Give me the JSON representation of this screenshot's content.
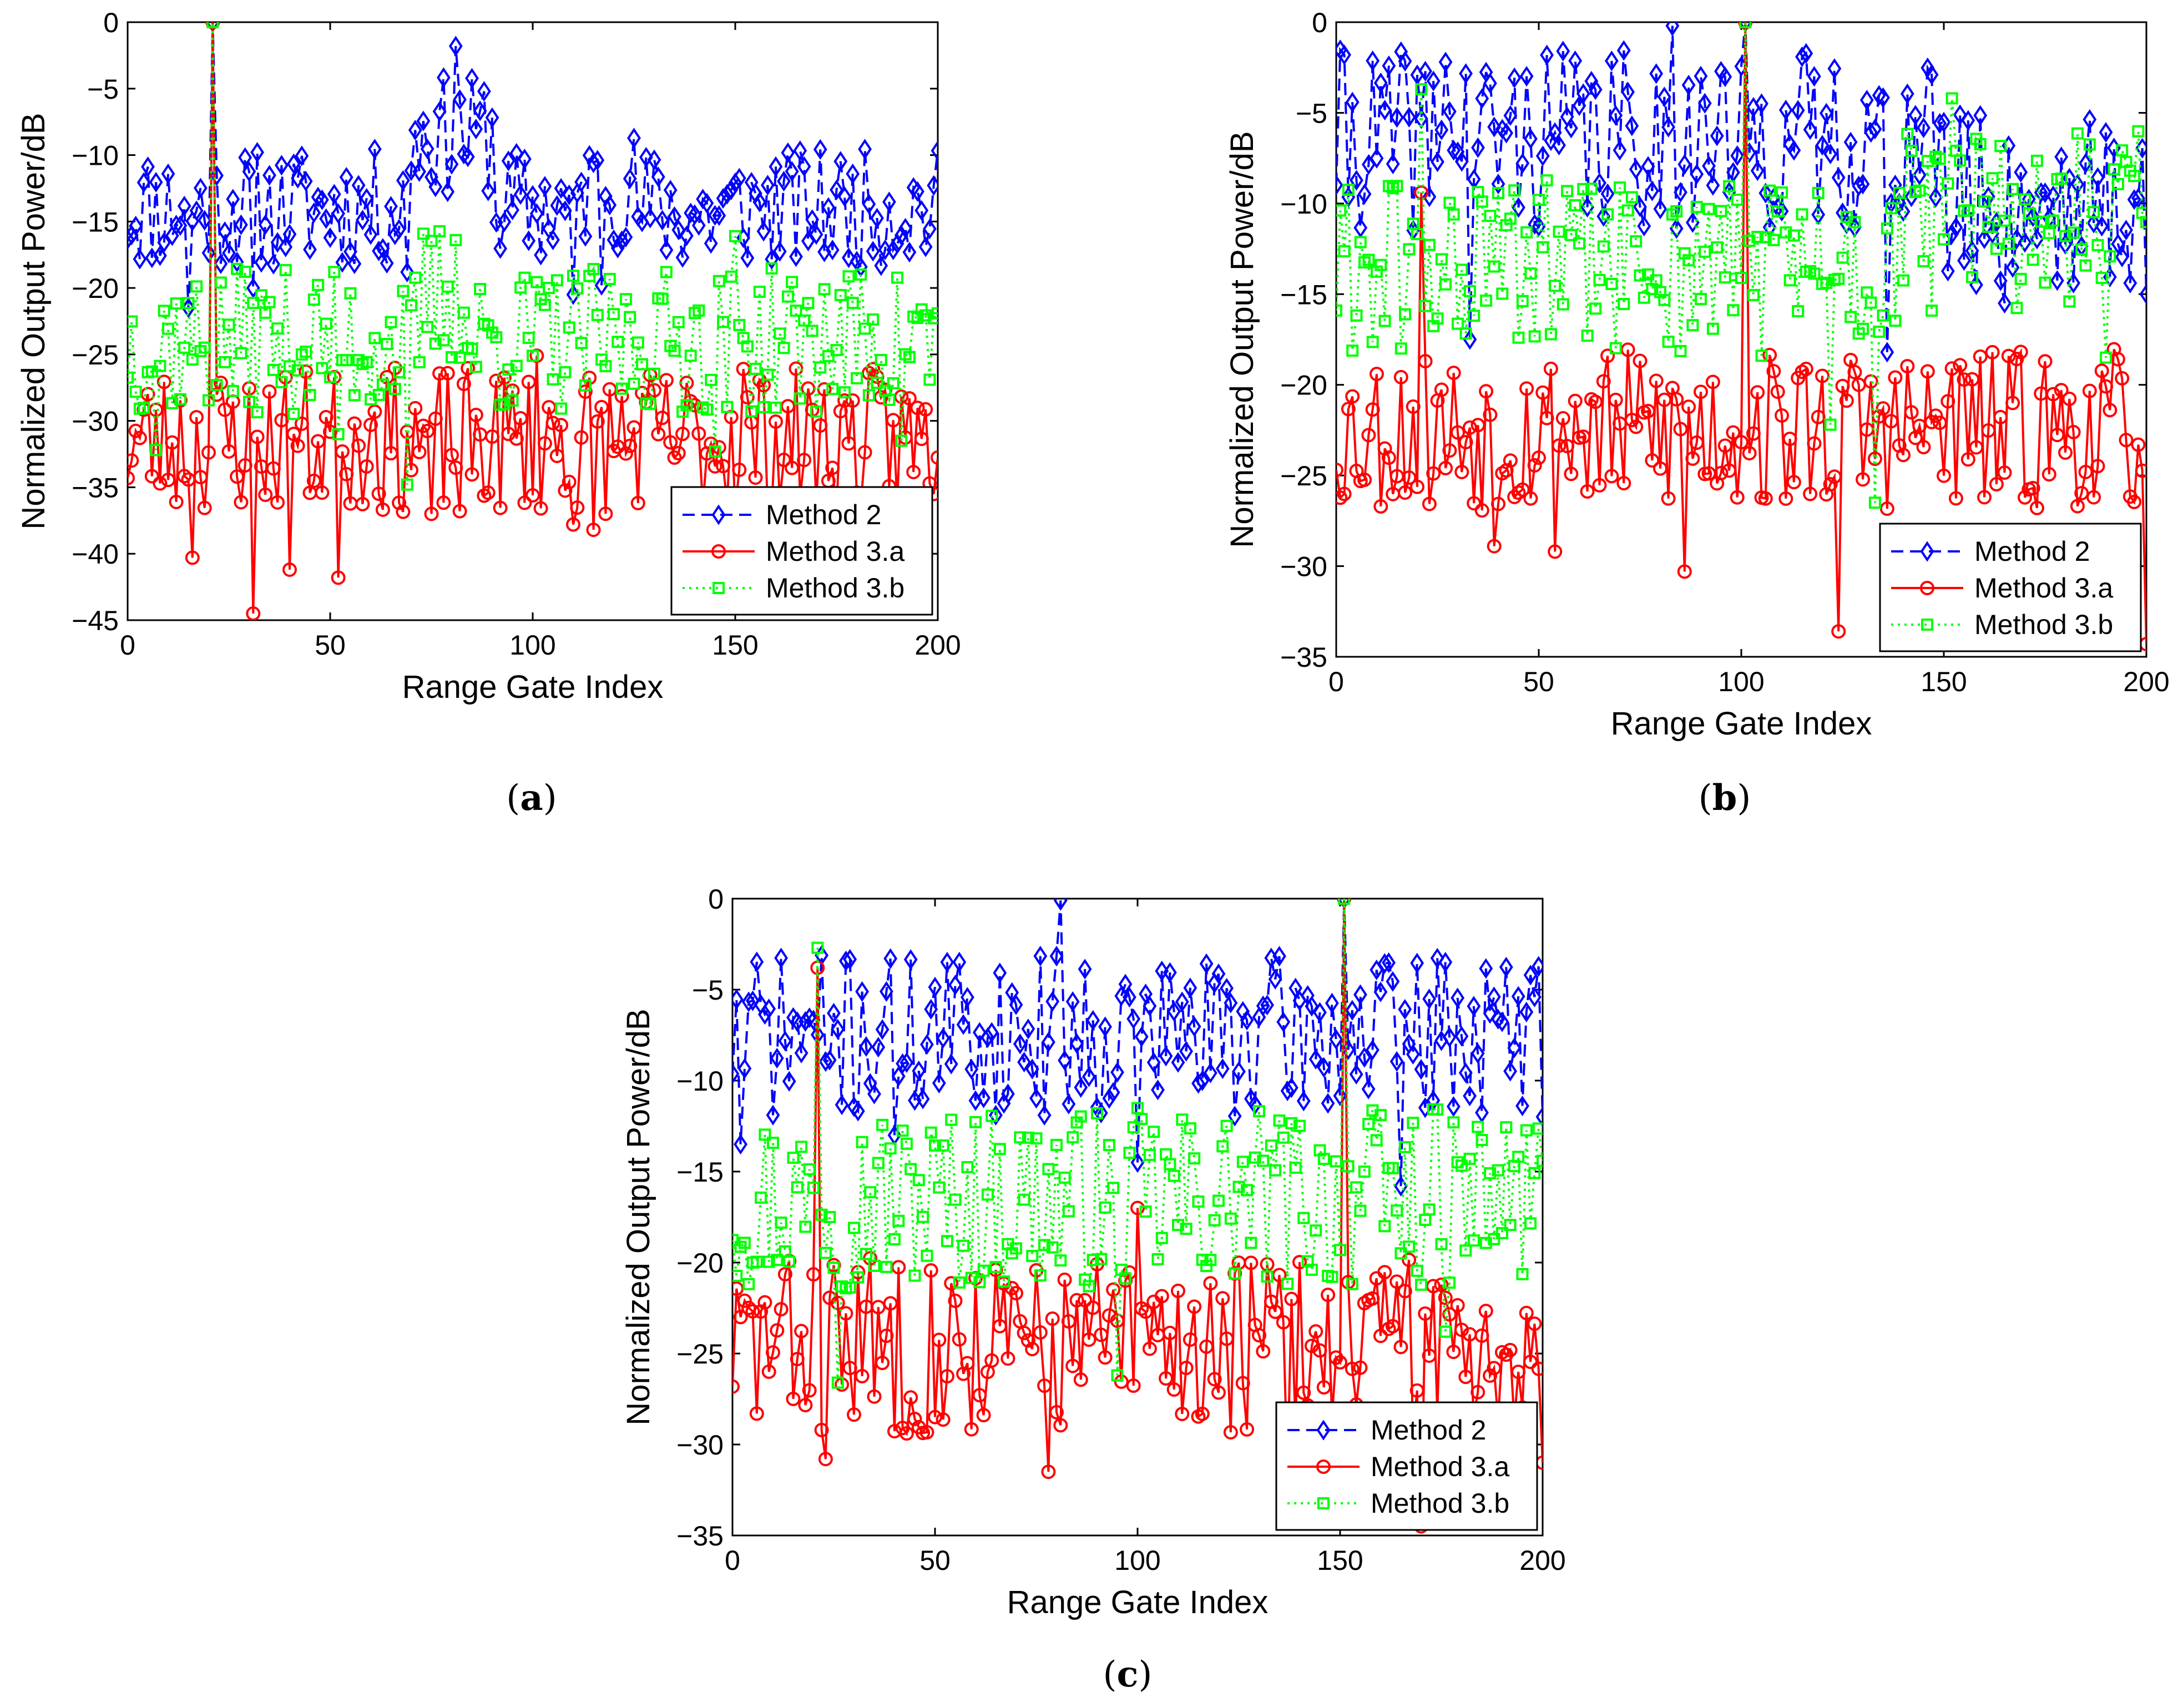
{
  "figure": {
    "series_styles": [
      {
        "name": "Method 2",
        "color": "#0000ff",
        "marker": "diamond",
        "line": "dashed"
      },
      {
        "name": "Method 3.a",
        "color": "#ff0000",
        "marker": "circle",
        "line": "solid"
      },
      {
        "name": "Method 3.b",
        "color": "#00ff00",
        "marker": "square",
        "line": "dotted"
      }
    ]
  },
  "chart_data": [
    {
      "id": "a",
      "caption_letter": "a",
      "type": "line",
      "title": "",
      "xlabel": "Range Gate Index",
      "ylabel": "Normalized Output Power/dB",
      "xlim": [
        0,
        200
      ],
      "ylim": [
        -45,
        0
      ],
      "xticks": [
        0,
        50,
        100,
        150,
        200
      ],
      "yticks": [
        0,
        -5,
        -10,
        -15,
        -20,
        -25,
        -30,
        -35,
        -40,
        -45
      ],
      "ytick_labels": [
        "0",
        "−5",
        "−10",
        "−15",
        "−20",
        "−25",
        "−30",
        "−35",
        "−40",
        "−45"
      ],
      "legend": "bottom-right",
      "legend_labels": [
        "Method 2",
        "Method 3.a",
        "Method 3.b"
      ],
      "target_index": 21,
      "series": [
        {
          "name": "Method 2",
          "base": -14.0,
          "spread": 4.5,
          "seed": 11,
          "segments": [
            [
              70,
              90,
              -8.5
            ],
            [
              112,
              125,
              -12.5
            ],
            [
              135,
              150,
              -14.5
            ]
          ],
          "peaks": [
            [
              21,
              0
            ],
            [
              81,
              -1.8
            ],
            [
              88,
              -5.2
            ],
            [
              15,
              -21.5
            ],
            [
              110,
              -20.5
            ],
            [
              117,
              -19.8
            ],
            [
              31,
              -20.0
            ],
            [
              69,
              -18.8
            ]
          ]
        },
        {
          "name": "Method 3.a",
          "base": -31.5,
          "spread": 5.5,
          "seed": 23,
          "segments": [],
          "peaks": [
            [
              21,
              0
            ],
            [
              31,
              -44.5
            ],
            [
              52,
              -41.8
            ],
            [
              16,
              -40.3
            ],
            [
              40,
              -41.2
            ],
            [
              35,
              -27.8
            ],
            [
              101,
              -25.1
            ],
            [
              152,
              -26.1
            ],
            [
              110,
              -37.8
            ],
            [
              115,
              -38.2
            ],
            [
              82,
              -36.8
            ],
            [
              75,
              -37.0
            ],
            [
              60,
              -30.3
            ]
          ]
        },
        {
          "name": "Method 3.b",
          "base": -24.0,
          "spread": 5.5,
          "seed": 37,
          "segments": [
            [
              73,
              82,
              -20.5
            ]
          ],
          "peaks": [
            [
              21,
              0
            ],
            [
              81,
              -16.4
            ],
            [
              150,
              -16.1
            ],
            [
              69,
              -34.8
            ],
            [
              7,
              -32.2
            ],
            [
              145,
              -32.3
            ],
            [
              52,
              -31.0
            ],
            [
              191,
              -31.5
            ]
          ]
        }
      ]
    },
    {
      "id": "b",
      "caption_letter": "b",
      "type": "line",
      "title": "",
      "xlabel": "Range Gate Index",
      "ylabel": "Normalized Output Power/dB",
      "xlim": [
        0,
        200
      ],
      "ylim": [
        -35,
        0
      ],
      "xticks": [
        0,
        50,
        100,
        150,
        200
      ],
      "yticks": [
        0,
        -5,
        -10,
        -15,
        -20,
        -25,
        -30,
        -35
      ],
      "ytick_labels": [
        "0",
        "−5",
        "−10",
        "−15",
        "−20",
        "−25",
        "−30",
        "−35"
      ],
      "legend": "bottom-right",
      "legend_labels": [
        "Method 2",
        "Method 3.a",
        "Method 3.b"
      ],
      "target_index": 101,
      "series": [
        {
          "name": "Method 2",
          "base": -6.5,
          "spread": 5.0,
          "seed": 41,
          "segments": [
            [
              150,
              200,
              -10.0
            ]
          ],
          "peaks": [
            [
              101,
              0
            ],
            [
              83,
              -0.2
            ],
            [
              2,
              -1.8
            ],
            [
              27,
              -2.2
            ],
            [
              33,
              -17.5
            ],
            [
              136,
              -18.2
            ],
            [
              165,
              -15.5
            ],
            [
              200,
              -15.0
            ]
          ]
        },
        {
          "name": "Method 3.a",
          "base": -22.5,
          "spread": 4.5,
          "seed": 53,
          "segments": [],
          "peaks": [
            [
              101,
              0
            ],
            [
              21,
              -9.4
            ],
            [
              152,
              -19.1
            ],
            [
              124,
              -33.6
            ],
            [
              200,
              -34.3
            ],
            [
              86,
              -30.3
            ],
            [
              54,
              -29.2
            ],
            [
              39,
              -28.9
            ]
          ]
        },
        {
          "name": "Method 3.b",
          "base": -13.5,
          "spread": 5.0,
          "seed": 61,
          "segments": [
            [
              140,
              200,
              -11.0
            ]
          ],
          "peaks": [
            [
              101,
              0
            ],
            [
              21,
              -3.7
            ],
            [
              152,
              -4.2
            ],
            [
              133,
              -26.5
            ],
            [
              122,
              -22.2
            ],
            [
              190,
              -18.5
            ]
          ]
        }
      ]
    },
    {
      "id": "c",
      "caption_letter": "c",
      "type": "line",
      "title": "",
      "xlabel": "Range Gate Index",
      "ylabel": "Normalized Output Power/dB",
      "xlim": [
        0,
        200
      ],
      "ylim": [
        -35,
        0
      ],
      "xticks": [
        0,
        50,
        100,
        150,
        200
      ],
      "yticks": [
        0,
        -5,
        -10,
        -15,
        -20,
        -25,
        -30,
        -35
      ],
      "ytick_labels": [
        "0",
        "−5",
        "−10",
        "−15",
        "−20",
        "−25",
        "−30",
        "−35"
      ],
      "legend": "bottom-right",
      "legend_labels": [
        "Method 2",
        "Method 3.a",
        "Method 3.b"
      ],
      "target_index": 151,
      "series": [
        {
          "name": "Method 2",
          "base": -7.5,
          "spread": 4.5,
          "seed": 71,
          "segments": [],
          "peaks": [
            [
              151,
              0
            ],
            [
              81,
              -0.1
            ],
            [
              2,
              -13.5
            ],
            [
              100,
              -14.5
            ],
            [
              40,
              -13.0
            ],
            [
              165,
              -15.8
            ],
            [
              110,
              -9.0
            ]
          ]
        },
        {
          "name": "Method 3.a",
          "base": -24.5,
          "spread": 5.0,
          "seed": 83,
          "segments": [],
          "peaks": [
            [
              151,
              0
            ],
            [
              21,
              -3.8
            ],
            [
              100,
              -17.0
            ],
            [
              170,
              -34.5
            ],
            [
              78,
              -31.5
            ],
            [
              23,
              -30.8
            ],
            [
              200,
              -31.0
            ],
            [
              137,
              -31.6
            ]
          ]
        },
        {
          "name": "Method 3.b",
          "base": -16.5,
          "spread": 5.0,
          "seed": 97,
          "segments": [],
          "peaks": [
            [
              151,
              0
            ],
            [
              21,
              -2.7
            ],
            [
              95,
              -26.2
            ],
            [
              26,
              -26.6
            ],
            [
              176,
              -23.8
            ]
          ]
        }
      ]
    }
  ]
}
